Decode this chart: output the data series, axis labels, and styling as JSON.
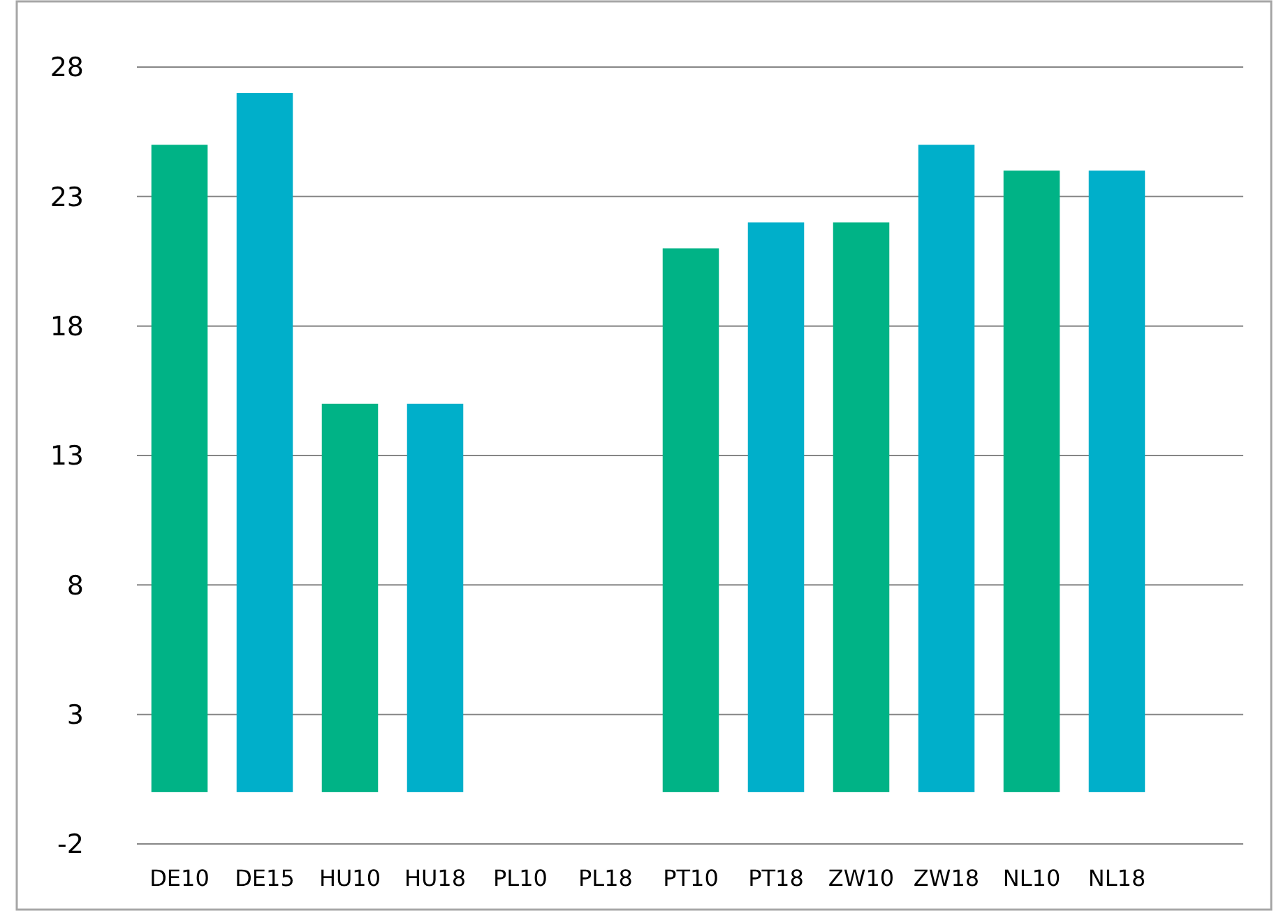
{
  "chart_data": {
    "type": "bar",
    "categories": [
      "DE10",
      "DE15",
      "HU10",
      "HU18",
      "PL10",
      "PL18",
      "PT10",
      "PT18",
      "ZW10",
      "ZW18",
      "NL10",
      "NL18"
    ],
    "values": [
      25,
      27,
      15,
      15,
      null,
      null,
      21,
      22,
      22,
      25,
      24,
      24
    ],
    "colors": [
      "#00b386",
      "#00afca",
      "#00b386",
      "#00afca",
      null,
      null,
      "#00b386",
      "#00afca",
      "#00b386",
      "#00afca",
      "#00b386",
      "#00afca"
    ],
    "ylim": [
      -2,
      28
    ],
    "yticks": [
      -2,
      3,
      8,
      13,
      18,
      23,
      28
    ],
    "grid": "y"
  }
}
